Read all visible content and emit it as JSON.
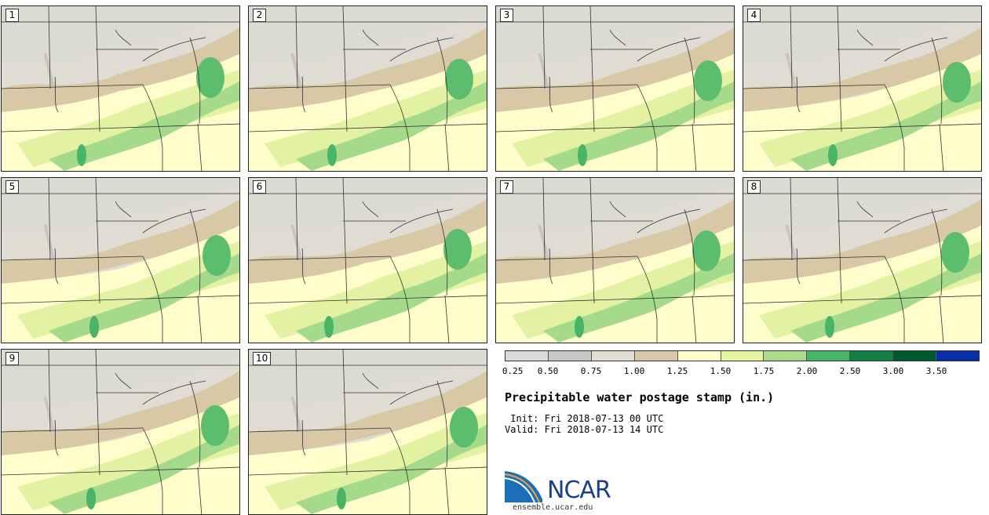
{
  "panels": [
    {
      "label": "1"
    },
    {
      "label": "2"
    },
    {
      "label": "3"
    },
    {
      "label": "4"
    },
    {
      "label": "5"
    },
    {
      "label": "6"
    },
    {
      "label": "7"
    },
    {
      "label": "8"
    },
    {
      "label": "9"
    },
    {
      "label": "10"
    }
  ],
  "legend": {
    "ticks": [
      "0.25",
      "0.50",
      "0.75",
      "1.00",
      "1.25",
      "1.50",
      "1.75",
      "2.00",
      "2.50",
      "3.00",
      "3.50"
    ],
    "colors": [
      "#d9d9d9",
      "#c8c8c8",
      "#e0ddd3",
      "#d9c8a8",
      "#ffffcc",
      "#e5f5a0",
      "#a9dc8c",
      "#48b468",
      "#128043",
      "#005a30",
      "#0a2ea8"
    ]
  },
  "title": "Precipitable water postage stamp (in.)",
  "init": " Init: Fri 2018-07-13 00 UTC",
  "valid": "Valid: Fri 2018-07-13 14 UTC",
  "logo": {
    "name": "NCAR",
    "url": "ensemble.ucar.edu"
  }
}
